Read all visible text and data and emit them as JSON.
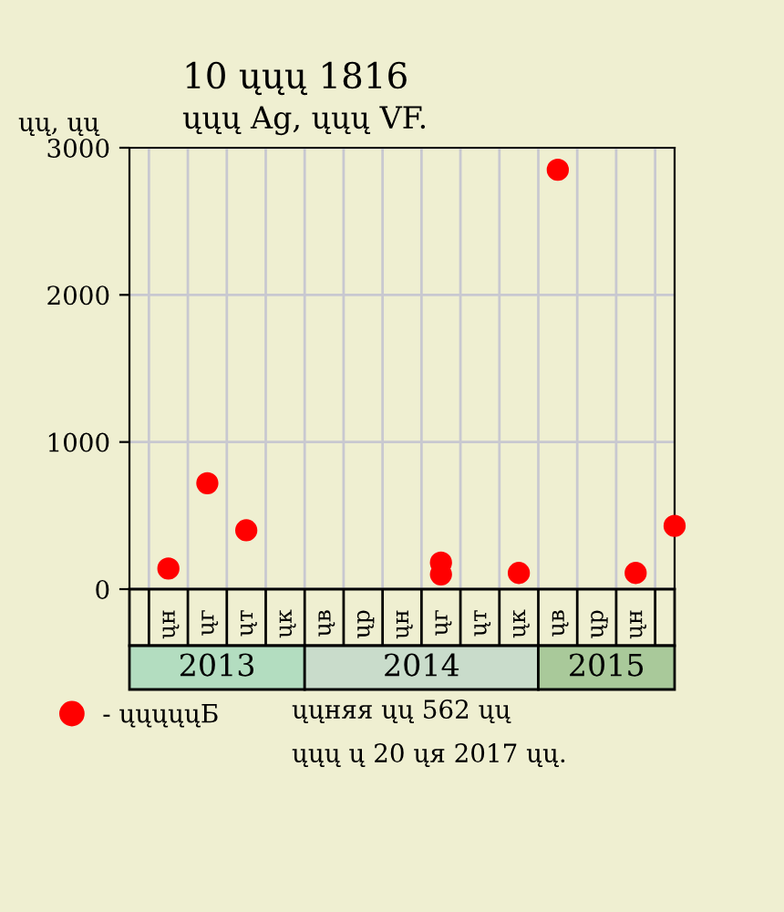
{
  "chart_data": {
    "type": "scatter",
    "title": "10 ųųų 1816",
    "subtitle": "ųųų Ag, ųųų VF.",
    "ylabel": "ųų, ųų",
    "categories": [
      null,
      "ųн",
      "ųг",
      "ųт",
      "ųк",
      "ųв",
      "ųр",
      "ųн",
      "ųг",
      "ųт",
      "ųк",
      "ųв",
      "ųр",
      "ųн",
      null
    ],
    "series": [
      {
        "name": "- ųųųųųБ",
        "color": "#ff0000",
        "values": [
          null,
          140,
          720,
          400,
          null,
          null,
          null,
          null,
          180,
          null,
          110,
          2850,
          null,
          110,
          430
        ]
      },
      {
        "color": "#ff0000",
        "values": [
          null,
          null,
          null,
          null,
          null,
          null,
          null,
          null,
          100,
          null,
          null,
          null,
          null,
          null,
          null
        ]
      }
    ],
    "marker": "circle",
    "legend": "bottom left",
    "grid": true,
    "ylim": [
      0,
      3000
    ],
    "yticks": [
      0,
      1000,
      2000,
      3000
    ],
    "annotations": [
      "2013",
      "2014",
      "2015",
      "ųųняя ųų 562 ųų",
      "ųųų ų 20 ųя 2017 ųų."
    ]
  }
}
